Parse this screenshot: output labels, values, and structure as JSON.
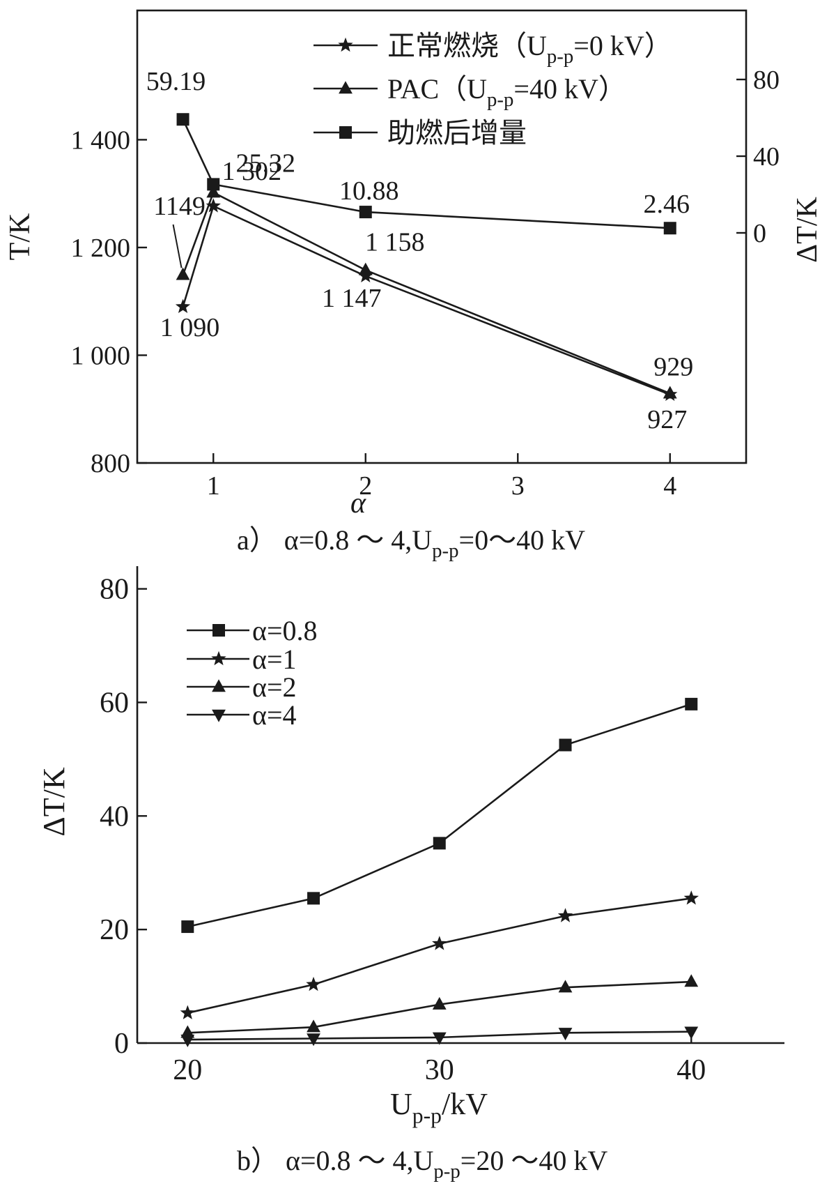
{
  "chart_data": [
    {
      "type": "line",
      "x_label": "α",
      "y_label_left": "T/K",
      "y_label_right": "ΔT/K",
      "caption": {
        "prefix": "a）",
        "text": "α=0.8 ～ 4,U",
        "sub": "p-p",
        "suffix": "=0～40 kV"
      },
      "x_ticks": [
        1,
        2,
        3,
        4
      ],
      "x_range": [
        0.5,
        4.5
      ],
      "y_left_ticks": [
        "800",
        "1 000",
        "1 200",
        "1 400"
      ],
      "y_left_range": [
        800,
        1640
      ],
      "y_right_ticks": [
        "0",
        "40",
        "80"
      ],
      "y_right_range": [
        -120,
        116
      ],
      "grid": false,
      "legend_position": "top-right",
      "series": [
        {
          "name": "正常燃烧（U",
          "name_sub": "p-p",
          "name_suffix": "=0 kV）",
          "marker": "star",
          "axis": "left",
          "x": [
            0.8,
            1,
            2,
            4
          ],
          "y": [
            1090,
            1277,
            1147,
            927
          ],
          "labels": [
            "1 090",
            "",
            "1 147",
            "927"
          ]
        },
        {
          "name": "PAC（U",
          "name_sub": "p-p",
          "name_suffix": "=40 kV）",
          "marker": "triangle-up",
          "axis": "left",
          "x": [
            0.8,
            1,
            2,
            4
          ],
          "y": [
            1149,
            1302,
            1158,
            929
          ],
          "labels": [
            "1149",
            "1 302",
            "1 158",
            "929"
          ]
        },
        {
          "name": "助燃后增量",
          "marker": "square",
          "axis": "right",
          "x": [
            0.8,
            1,
            2,
            4
          ],
          "y": [
            59.19,
            25.32,
            10.88,
            2.46
          ],
          "labels": [
            "59.19",
            "25.32",
            "10.88",
            "2.46"
          ]
        }
      ]
    },
    {
      "type": "line",
      "x_label": "U",
      "x_label_sub": "p-p",
      "x_label_suffix": "/kV",
      "y_label": "ΔT/K",
      "caption": {
        "prefix": "b）",
        "text": "α=0.8 ～ 4,U",
        "sub": "p-p",
        "suffix": "=20 ～40 kV"
      },
      "x_ticks": [
        20,
        30,
        40
      ],
      "x_range": [
        20,
        42
      ],
      "y_ticks": [
        0,
        20,
        40,
        60,
        80
      ],
      "y_range": [
        0,
        84
      ],
      "grid": false,
      "legend_position": "top-left",
      "series": [
        {
          "name": "α=0.8",
          "marker": "square",
          "x": [
            20,
            25,
            30,
            35,
            40
          ],
          "y": [
            20.5,
            25.5,
            35.2,
            52.5,
            59.7
          ]
        },
        {
          "name": "α=1",
          "marker": "star",
          "x": [
            20,
            25,
            30,
            35,
            40
          ],
          "y": [
            5.3,
            10.3,
            17.5,
            22.4,
            25.5
          ]
        },
        {
          "name": "α=2",
          "marker": "triangle-up",
          "x": [
            20,
            25,
            30,
            35,
            40
          ],
          "y": [
            1.8,
            2.8,
            6.8,
            9.8,
            10.8
          ]
        },
        {
          "name": "α=4",
          "marker": "triangle-down",
          "x": [
            20,
            25,
            30,
            35,
            40
          ],
          "y": [
            0.6,
            0.8,
            1.0,
            1.8,
            2.0
          ]
        }
      ]
    }
  ]
}
